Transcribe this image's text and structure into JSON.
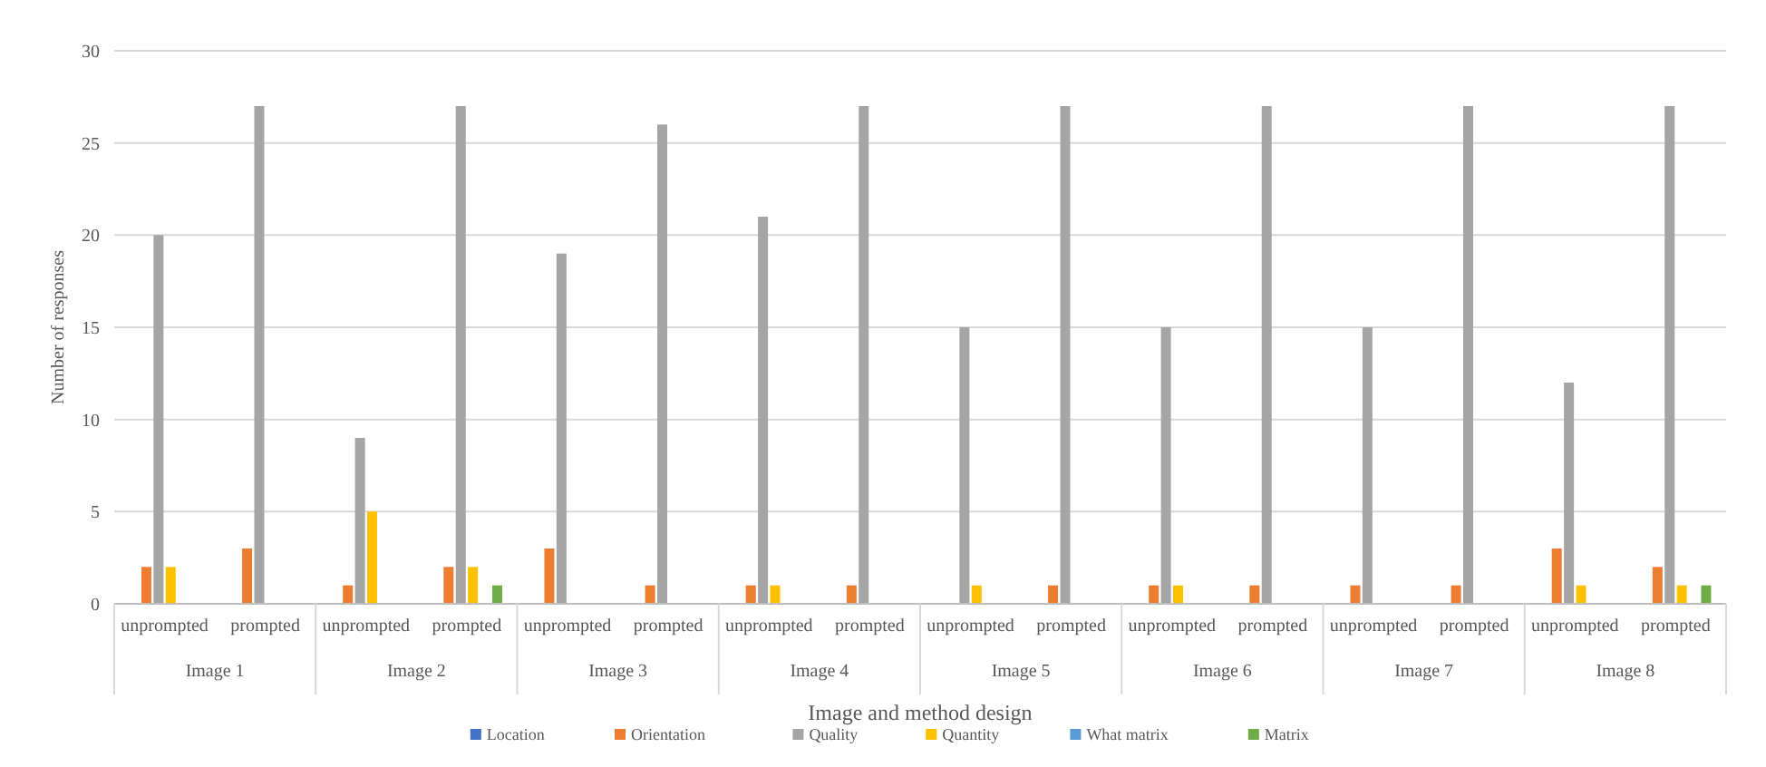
{
  "chart_data": {
    "type": "bar",
    "xlabel": "Image and method design",
    "ylabel": "Number of responses",
    "categories": [
      "unprompted",
      "prompted",
      "unprompted",
      "prompted",
      "unprompted",
      "prompted",
      "unprompted",
      "prompted",
      "unprompted",
      "prompted",
      "unprompted",
      "prompted",
      "unprompted",
      "prompted",
      "unprompted",
      "prompted"
    ],
    "annotations": [
      "Image 1",
      "Image 2",
      "Image 3",
      "Image 4",
      "Image 5",
      "Image 6",
      "Image 7",
      "Image 8"
    ],
    "series": [
      {
        "name": "Location",
        "color": "#4472c4",
        "values": [
          0,
          0,
          0,
          0,
          0,
          0,
          0,
          0,
          0,
          0,
          0,
          0,
          0,
          0,
          0,
          0
        ]
      },
      {
        "name": "Orientation",
        "color": "#ed7d31",
        "values": [
          2,
          3,
          1,
          2,
          3,
          1,
          1,
          1,
          0,
          1,
          1,
          1,
          1,
          1,
          3,
          2
        ]
      },
      {
        "name": "Quality",
        "color": "#a5a5a5",
        "values": [
          20,
          27,
          9,
          27,
          19,
          26,
          21,
          27,
          15,
          27,
          15,
          27,
          15,
          27,
          12,
          27
        ]
      },
      {
        "name": "Quantity",
        "color": "#ffc000",
        "values": [
          2,
          0,
          5,
          2,
          0,
          0,
          1,
          0,
          1,
          0,
          1,
          0,
          0,
          0,
          1,
          1
        ]
      },
      {
        "name": "What matrix",
        "color": "#5b9bd5",
        "values": [
          0,
          0,
          0,
          0,
          0,
          0,
          0,
          0,
          0,
          0,
          0,
          0,
          0,
          0,
          0,
          0
        ]
      },
      {
        "name": "Matrix",
        "color": "#70ad47",
        "values": [
          0,
          0,
          0,
          1,
          0,
          0,
          0,
          0,
          0,
          0,
          0,
          0,
          0,
          0,
          0,
          1
        ]
      }
    ],
    "ylim": [
      0,
      30
    ],
    "yticks": [
      0,
      5,
      10,
      15,
      20,
      25,
      30
    ],
    "grid": "y",
    "legend": "bottom"
  }
}
